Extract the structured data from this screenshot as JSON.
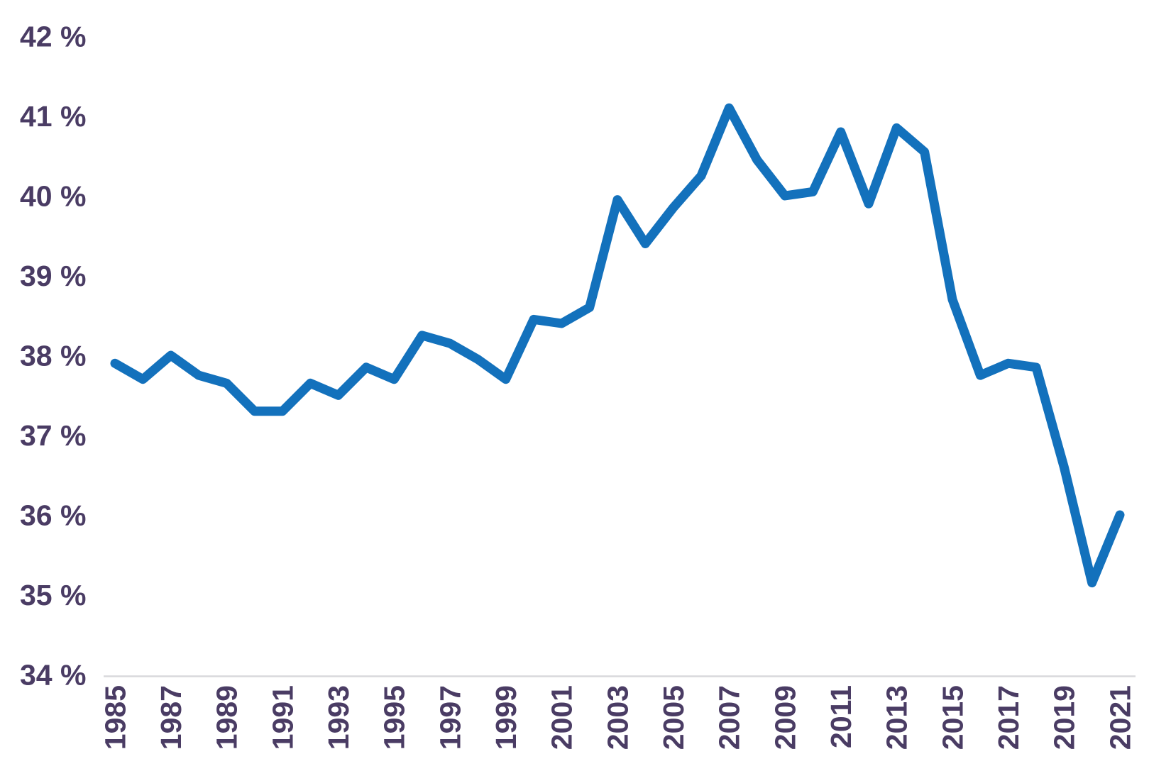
{
  "chart_data": {
    "type": "line",
    "x": [
      1985,
      1986,
      1987,
      1988,
      1989,
      1990,
      1991,
      1992,
      1993,
      1994,
      1995,
      1996,
      1997,
      1998,
      1999,
      2000,
      2001,
      2002,
      2003,
      2004,
      2005,
      2006,
      2007,
      2008,
      2009,
      2010,
      2011,
      2012,
      2013,
      2014,
      2015,
      2016,
      2017,
      2018,
      2019,
      2020,
      2021
    ],
    "values": [
      37.9,
      37.7,
      38.0,
      37.75,
      37.65,
      37.3,
      37.3,
      37.65,
      37.5,
      37.85,
      37.7,
      38.25,
      38.15,
      37.95,
      37.7,
      38.45,
      38.4,
      38.6,
      39.95,
      39.4,
      39.85,
      40.25,
      41.1,
      40.45,
      40.0,
      40.05,
      40.8,
      39.9,
      40.85,
      40.55,
      38.7,
      37.75,
      37.9,
      37.85,
      36.6,
      35.15,
      36.0
    ],
    "title": "",
    "xlabel": "",
    "ylabel": "",
    "xlim": [
      1985,
      2021
    ],
    "ylim": [
      34,
      42
    ],
    "ytick_values": [
      34,
      35,
      36,
      37,
      38,
      39,
      40,
      41,
      42
    ],
    "ytick_labels": [
      "34 %",
      "35 %",
      "36 %",
      "37 %",
      "38 %",
      "39 %",
      "40 %",
      "41 %",
      "42 %"
    ],
    "ytick_suffix": " %",
    "xtick_values": [
      1985,
      1987,
      1989,
      1991,
      1993,
      1995,
      1997,
      1999,
      2001,
      2003,
      2005,
      2007,
      2009,
      2011,
      2013,
      2015,
      2017,
      2019,
      2021
    ],
    "xtick_labels": [
      "1985",
      "1987",
      "1989",
      "1991",
      "1993",
      "1995",
      "1997",
      "1999",
      "2001",
      "2003",
      "2005",
      "2007",
      "2009",
      "2011",
      "2013",
      "2015",
      "2017",
      "2019",
      "2021"
    ],
    "grid": false,
    "legend": "none",
    "x_label_rotation_deg": -90,
    "colors": {
      "line": "#1371BC",
      "tick_label": "#4A3C64",
      "axis_line": "#D9D9DC",
      "background": "#FFFFFF"
    }
  }
}
